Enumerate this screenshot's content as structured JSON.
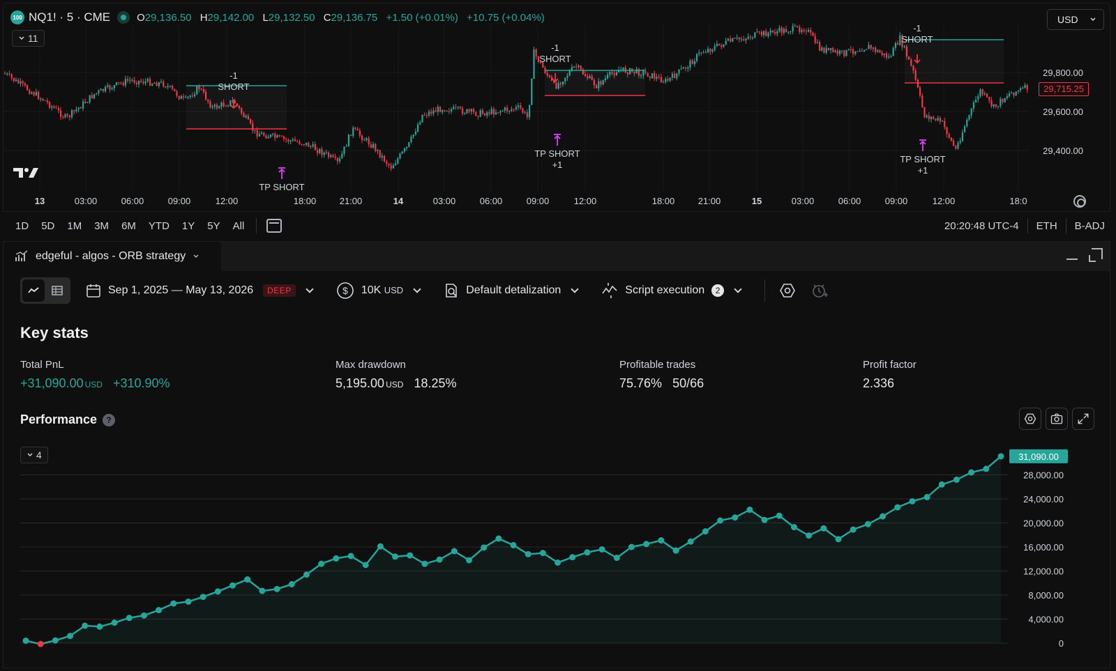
{
  "symbol": {
    "badge": "100",
    "name": "NQ1! · 5 · CME",
    "open_label": "O",
    "open": "29,136.50",
    "high_label": "H",
    "high": "29,142.00",
    "low_label": "L",
    "low": "29,132.50",
    "close_label": "C",
    "close": "29,136.75",
    "change": "+1.50 (+0.01%)",
    "change_ext": "+10.75 (+0.04%)",
    "indicator_count": "11",
    "currency": "USD",
    "last_price": "29,715.25"
  },
  "price_axis": [
    "29,800.00",
    "29,600.00",
    "29,400.00"
  ],
  "time_axis": [
    "13",
    "03:00",
    "06:00",
    "09:00",
    "12:00",
    "18:00",
    "21:00",
    "14",
    "03:00",
    "06:00",
    "09:00",
    "12:00",
    "18:00",
    "21:00",
    "15",
    "03:00",
    "06:00",
    "09:00",
    "12:00",
    "18:0"
  ],
  "trade_annotations": [
    {
      "entry_qty": "-1",
      "entry_label": "SHORT",
      "exit_label": "TP SHORT",
      "exit_qty": ""
    },
    {
      "entry_qty": "-1",
      "entry_label": "SHORT",
      "exit_label": "TP SHORT",
      "exit_qty": "+1"
    },
    {
      "entry_qty": "-1",
      "entry_label": "SHORT",
      "exit_label": "TP SHORT",
      "exit_qty": "+1"
    }
  ],
  "timeframes": [
    "1D",
    "5D",
    "1M",
    "3M",
    "6M",
    "YTD",
    "1Y",
    "5Y",
    "All"
  ],
  "status": {
    "clock": "20:20:48 UTC-4",
    "session": "ETH",
    "adjust": "B-ADJ"
  },
  "panel": {
    "tab_label": "edgeful - algos - ORB strategy",
    "date_range": "Sep 1, 2025 — May 13, 2026",
    "deep_badge": "DEEP",
    "capital": "10K",
    "capital_unit": "USD",
    "detalization": "Default detalization",
    "script_execution": "Script execution",
    "script_count": "2"
  },
  "key_stats": {
    "title": "Key stats",
    "total_pnl": {
      "label": "Total PnL",
      "value": "+31,090.00",
      "unit": "USD",
      "pct": "+310.90%"
    },
    "max_drawdown": {
      "label": "Max drawdown",
      "value": "5,195.00",
      "unit": "USD",
      "pct": "18.25%"
    },
    "profitable": {
      "label": "Profitable trades",
      "value": "75.76%",
      "ratio": "50/66"
    },
    "profit_factor": {
      "label": "Profit factor",
      "value": "2.336"
    }
  },
  "performance": {
    "title": "Performance",
    "help": "?",
    "collapse_count": "4",
    "last_value_label": "31,090.00"
  },
  "chart_data": {
    "type": "area",
    "title": "Performance",
    "xlabel": "",
    "ylabel": "",
    "ylim": [
      0,
      32000
    ],
    "y_ticks": [
      "0",
      "4,000.00",
      "8,000.00",
      "12,000.00",
      "16,000.00",
      "20,000.00",
      "24,000.00",
      "28,000.00"
    ],
    "y_tick_values": [
      0,
      4000,
      8000,
      12000,
      16000,
      20000,
      24000,
      28000
    ],
    "grid": true,
    "line_color": "#26a69a",
    "loss_color": "#f23645",
    "series": [
      {
        "values": [
          400,
          -150,
          450,
          1200,
          2900,
          2750,
          3400,
          4200,
          4600,
          5500,
          6600,
          6900,
          7700,
          8600,
          9600,
          10600,
          8700,
          9000,
          9800,
          11400,
          13200,
          14100,
          14500,
          13000,
          16100,
          14400,
          14600,
          13200,
          13900,
          15300,
          13800,
          15900,
          17400,
          16300,
          14800,
          15000,
          13400,
          14300,
          15100,
          15600,
          14200,
          16000,
          16500,
          17100,
          15400,
          16900,
          18600,
          20400,
          20900,
          22200,
          20500,
          21200,
          19300,
          17900,
          19100,
          17300,
          18900,
          19800,
          21100,
          22600,
          23600,
          24300,
          26400,
          27200,
          28400,
          29000,
          31090
        ]
      }
    ]
  },
  "colors": {
    "up": "#26a69a",
    "down": "#f23645",
    "marker": "#e040fb",
    "bg": "#0f0f0f"
  },
  "icons": [
    "chevron-down-icon",
    "tradingview-logo-icon",
    "calendar-icon",
    "dollar-icon",
    "detalization-icon",
    "script-execution-icon",
    "settings-hex-icon",
    "replay-icon",
    "camera-icon",
    "fullscreen-icon",
    "help-icon"
  ]
}
